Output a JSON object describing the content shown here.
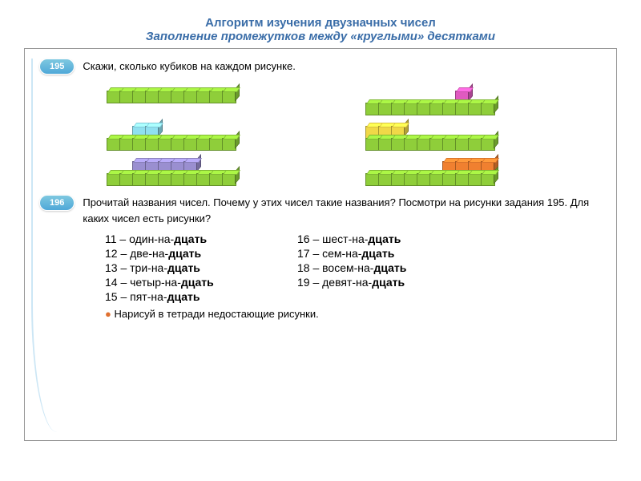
{
  "title_line1": "Алгоритм изучения двузначных чисел",
  "title_line2": "Заполнение промежутков между «круглыми» десятками",
  "title_color": "#3a6da8",
  "swoosh_color": "#3a9fd8",
  "task1": {
    "badge": "195",
    "text": "Скажи, сколько кубиков на каждом рисунке."
  },
  "task2": {
    "badge": "196",
    "text": "Прочитай названия чисел. Почему у этих чисел такие названия? Посмотри на рисунки задания 195. Для каких чисел есть рисунки?"
  },
  "colors": {
    "green": "#8fce3a",
    "cyan": "#8fe0f0",
    "purple": "#9a8fd0",
    "yellow": "#f0d848",
    "magenta": "#e05ac0",
    "orange": "#f08030"
  },
  "groups": [
    {
      "rows": [
        {
          "color": "green",
          "count": 10,
          "offset": 0
        }
      ]
    },
    {
      "rows": [
        {
          "color": "magenta",
          "count": 1,
          "offset": 7
        },
        {
          "color": "green",
          "count": 10,
          "offset": 0
        }
      ]
    },
    {
      "rows": [
        {
          "color": "cyan",
          "count": 2,
          "offset": 2
        },
        {
          "color": "green",
          "count": 10,
          "offset": 0
        }
      ]
    },
    {
      "rows": [
        {
          "color": "yellow",
          "count": 3,
          "offset": 0
        },
        {
          "color": "green",
          "count": 10,
          "offset": 0
        }
      ]
    },
    {
      "rows": [
        {
          "color": "purple",
          "count": 5,
          "offset": 2
        },
        {
          "color": "green",
          "count": 10,
          "offset": 0
        }
      ]
    },
    {
      "rows": [
        {
          "color": "orange",
          "count": 4,
          "offset": 6
        },
        {
          "color": "green",
          "count": 10,
          "offset": 0
        }
      ]
    }
  ],
  "numbers_left": [
    {
      "n": "11",
      "parts": [
        "один-на-",
        "дцать"
      ]
    },
    {
      "n": "12",
      "parts": [
        "две-на-",
        "дцать"
      ]
    },
    {
      "n": "13",
      "parts": [
        "три-на-",
        "дцать"
      ]
    },
    {
      "n": "14",
      "parts": [
        "четыр-на-",
        "дцать"
      ]
    },
    {
      "n": "15",
      "parts": [
        "пят-на-",
        "дцать"
      ]
    }
  ],
  "numbers_right": [
    {
      "n": "16",
      "parts": [
        "шест-на-",
        "дцать"
      ]
    },
    {
      "n": "17",
      "parts": [
        "сем-на-",
        "дцать"
      ]
    },
    {
      "n": "18",
      "parts": [
        "восем-на-",
        "дцать"
      ]
    },
    {
      "n": "19",
      "parts": [
        "девят-на-",
        "дцать"
      ]
    }
  ],
  "bullet": "Нарисуй в тетради недостающие рисунки."
}
